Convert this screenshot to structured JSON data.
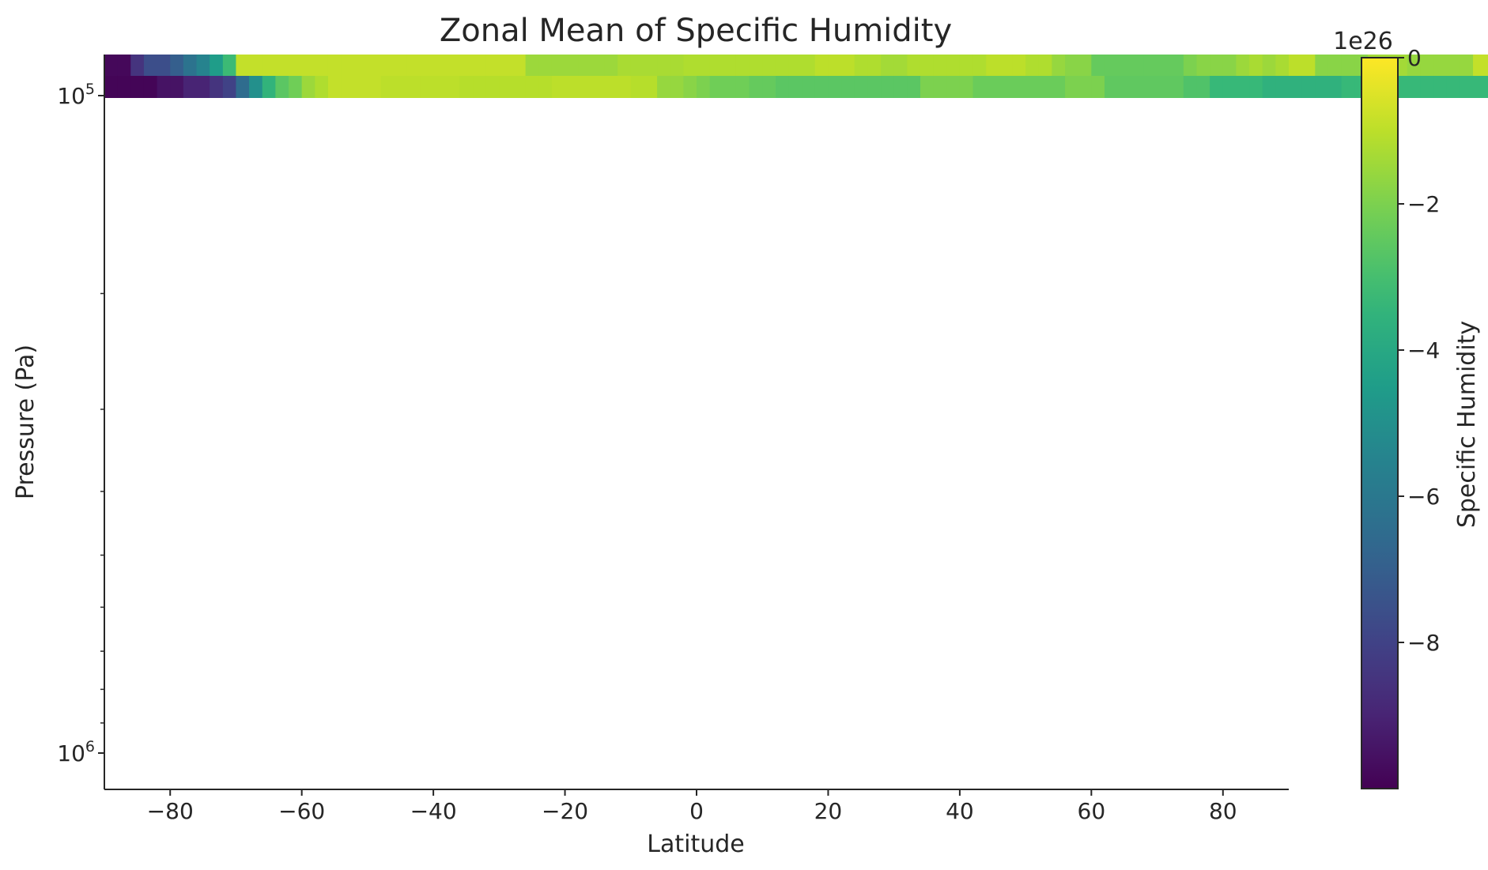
{
  "chart_data": {
    "type": "heatmap",
    "title": "Zonal Mean of Specific Humidity",
    "xlabel": "Latitude",
    "ylabel": "Pressure (Pa)",
    "xlim": [
      -90,
      90
    ],
    "x_ticks": [
      -80,
      -60,
      -40,
      -20,
      0,
      20,
      40,
      60,
      80
    ],
    "x_tick_labels": [
      "−80",
      "−60",
      "−40",
      "−20",
      "0",
      "20",
      "40",
      "60",
      "80"
    ],
    "y_scale": "log",
    "y_inverted": true,
    "y_major_ticks": [
      {
        "value": 100000,
        "base": "10",
        "exp": "5"
      },
      {
        "value": 1000000,
        "base": "10",
        "exp": "6"
      }
    ],
    "y_minor_ticks": [
      200000,
      300000,
      400000,
      500000,
      600000,
      700000,
      800000,
      900000
    ],
    "colormap": "viridis",
    "colorbar": {
      "label": "Specific Humidity",
      "offset_text": "1e26",
      "range": [
        -10,
        0
      ],
      "ticks": [
        0,
        -2,
        -4,
        -6,
        -8
      ],
      "tick_labels": [
        "0",
        "−2",
        "−4",
        "−6",
        "−8"
      ]
    },
    "grid": false,
    "cell_width_deg": 2,
    "rows": [
      {
        "level": "upper",
        "values": [
          -9.8,
          -9.8,
          -8.5,
          -7.6,
          -7.6,
          -7.0,
          -6.2,
          -5.5,
          -4.5,
          -3.2,
          -0.9,
          -0.9,
          -0.9,
          -0.9,
          -0.9,
          -0.9,
          -0.9,
          -0.9,
          -0.9,
          -0.9,
          -0.9,
          -0.9,
          -0.9,
          -0.9,
          -0.9,
          -0.9,
          -0.9,
          -0.9,
          -0.9,
          -0.9,
          -0.9,
          -0.9,
          -1.5,
          -1.5,
          -1.5,
          -1.5,
          -1.5,
          -1.5,
          -1.5,
          -1.3,
          -1.3,
          -1.3,
          -1.3,
          -1.3,
          -1.2,
          -1.2,
          -1.2,
          -1.2,
          -1.2,
          -1.2,
          -1.2,
          -1.2,
          -1.2,
          -1.2,
          -1.0,
          -1.0,
          -1.0,
          -1.2,
          -1.2,
          -1.4,
          -1.4,
          -1.2,
          -1.2,
          -1.2,
          -1.2,
          -1.2,
          -1.2,
          -1.0,
          -1.0,
          -1.0,
          -1.2,
          -1.2,
          -1.6,
          -1.8,
          -1.8,
          -2.4,
          -2.4,
          -2.4,
          -2.4,
          -2.4,
          -2.4,
          -2.4,
          -2.0,
          -1.8,
          -1.8,
          -1.8,
          -1.5,
          -1.3,
          -1.5,
          -1.3,
          -1.0,
          -1.0,
          -1.8,
          -1.8,
          -1.8,
          -1.8,
          -1.4,
          -1.4,
          -1.4,
          -1.6,
          -1.6,
          -1.6,
          -1.6,
          -1.6,
          -0.9,
          -0.9,
          -0.9,
          -0.9,
          -0.9,
          -0.9
        ]
      },
      {
        "level": "lower",
        "values": [
          -9.9,
          -9.9,
          -9.9,
          -9.9,
          -9.5,
          -9.5,
          -9.0,
          -9.0,
          -8.5,
          -8.0,
          -6.5,
          -5.0,
          -3.5,
          -2.6,
          -2.2,
          -1.5,
          -1.2,
          -0.9,
          -0.9,
          -0.9,
          -0.9,
          -1.0,
          -1.0,
          -1.0,
          -1.0,
          -1.0,
          -1.0,
          -1.1,
          -1.1,
          -1.1,
          -1.1,
          -1.1,
          -1.1,
          -1.1,
          -1.0,
          -1.0,
          -1.0,
          -1.0,
          -1.0,
          -1.0,
          -1.1,
          -1.1,
          -1.6,
          -1.6,
          -1.8,
          -2.0,
          -2.2,
          -2.2,
          -2.2,
          -2.4,
          -2.4,
          -2.6,
          -2.6,
          -2.6,
          -2.6,
          -2.6,
          -2.6,
          -2.6,
          -2.6,
          -2.6,
          -2.6,
          -2.6,
          -2.0,
          -2.0,
          -2.0,
          -2.0,
          -2.3,
          -2.3,
          -2.3,
          -2.3,
          -2.3,
          -2.3,
          -2.3,
          -2.0,
          -2.0,
          -2.0,
          -2.5,
          -2.5,
          -2.5,
          -2.5,
          -2.5,
          -2.5,
          -2.8,
          -2.8,
          -3.3,
          -3.3,
          -3.3,
          -3.3,
          -3.6,
          -3.6,
          -3.6,
          -3.6,
          -3.6,
          -3.6,
          -3.3,
          -3.3,
          -3.3,
          -3.3,
          -3.3,
          -3.3,
          -3.3,
          -3.3,
          -3.3,
          -3.3,
          -3.3,
          -3.3,
          -3.3,
          -3.3,
          -3.3,
          -3.3
        ]
      }
    ]
  }
}
